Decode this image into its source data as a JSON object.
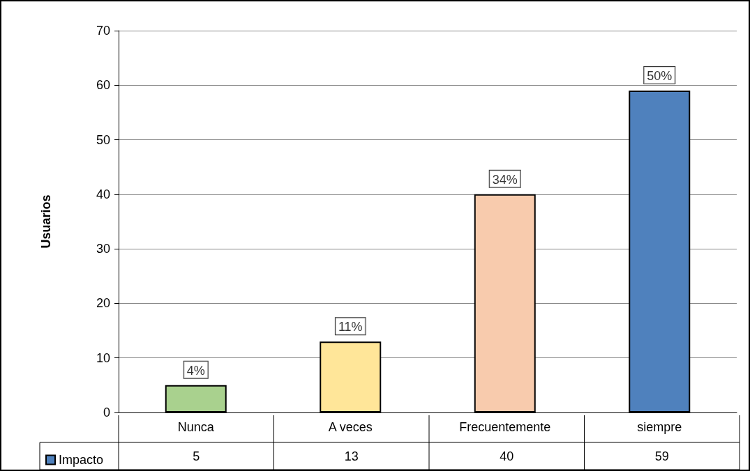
{
  "chart_data": {
    "type": "bar",
    "ylabel": "Usuarios",
    "categories": [
      "Nunca",
      "A veces",
      "Frecuentemente",
      "siempre"
    ],
    "series": [
      {
        "name": "Impacto",
        "color": "#4f81bd",
        "colors": [
          "#a9d18e",
          "#ffe699",
          "#f8cbad",
          "#4f81bd"
        ],
        "values": [
          5,
          13,
          40,
          59
        ],
        "value_labels": [
          "5",
          "13",
          "40",
          "59"
        ]
      }
    ],
    "annotations": [
      {
        "text": "4%",
        "x": "Nunca",
        "y": 5
      },
      {
        "text": "11%",
        "x": "A veces",
        "y": 13
      },
      {
        "text": "34%",
        "x": "Frecuentemente",
        "y": 40
      },
      {
        "text": "50%",
        "x": "siempre",
        "y": 59
      }
    ],
    "ylim": [
      0,
      70
    ],
    "yticks": [
      0,
      10,
      20,
      30,
      40,
      50,
      60,
      70
    ],
    "grid": "y",
    "legend": "bottom"
  }
}
